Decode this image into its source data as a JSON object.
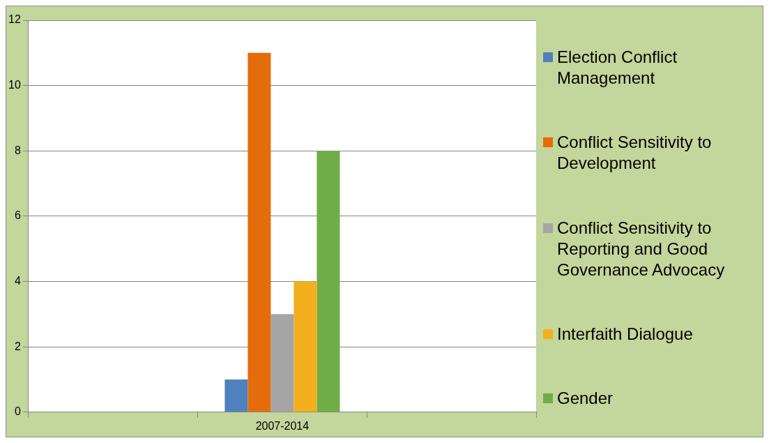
{
  "chart_data": {
    "type": "bar",
    "categories": [
      null,
      "2007-2014",
      null
    ],
    "series": [
      {
        "name": "Election Conflict Management",
        "color": "#4f81bd",
        "values": [
          null,
          1,
          null
        ]
      },
      {
        "name": "Conflict Sensitivity to Development",
        "color": "#e46c0a",
        "values": [
          null,
          11,
          null
        ]
      },
      {
        "name": "Conflict Sensitivity to Reporting and Good Governance Advocacy",
        "color": "#a5a5a5",
        "values": [
          null,
          3,
          null
        ]
      },
      {
        "name": "Interfaith Dialogue",
        "color": "#f2b01e",
        "values": [
          null,
          4,
          null
        ]
      },
      {
        "name": "Gender",
        "color": "#70ad47",
        "values": [
          null,
          8,
          null
        ]
      }
    ],
    "ylim": [
      0,
      12
    ],
    "yticks": [
      0,
      2,
      4,
      6,
      8,
      10,
      12
    ],
    "grid": "y",
    "legend": "right"
  }
}
